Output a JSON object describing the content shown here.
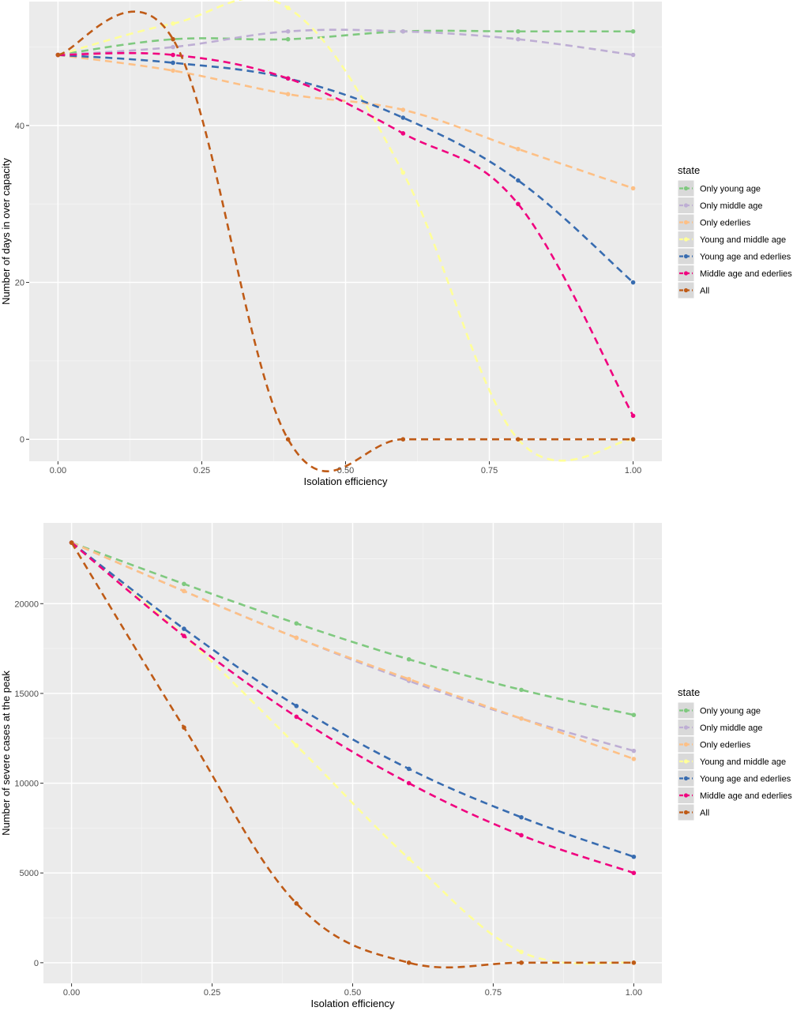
{
  "chart_data": [
    {
      "type": "line",
      "xlabel": "Isolation efficiency",
      "ylabel": "Number of days in over capacity",
      "xlim": [
        -0.05,
        1.05
      ],
      "ylim": [
        -2.8,
        55.8
      ],
      "x_ticks": [
        0.0,
        0.25,
        0.5,
        0.75,
        1.0
      ],
      "x_tick_labels": [
        "0.00",
        "0.25",
        "0.50",
        "0.75",
        "1.00"
      ],
      "y_ticks": [
        0,
        20,
        40
      ],
      "y_tick_labels": [
        "0",
        "20",
        "40"
      ],
      "grid": true,
      "line_style": "dashed",
      "legend": {
        "title": "state",
        "position": "right"
      },
      "x": [
        0.0,
        0.2,
        0.4,
        0.6,
        0.8,
        1.0
      ],
      "series": [
        {
          "name": "Only young age",
          "color": "#7fc97f",
          "values": [
            49,
            51,
            51,
            52,
            52,
            52
          ]
        },
        {
          "name": "Only middle age",
          "color": "#beaed4",
          "values": [
            49,
            50,
            52,
            52,
            51,
            49
          ]
        },
        {
          "name": "Only ederlies",
          "color": "#fdc086",
          "values": [
            49,
            47,
            44,
            42,
            37,
            32
          ]
        },
        {
          "name": "Young and middle age",
          "color": "#ffff99",
          "values": [
            49,
            53,
            55,
            34,
            0,
            0
          ]
        },
        {
          "name": "Young age and ederlies",
          "color": "#386cb0",
          "values": [
            49,
            48,
            46,
            41,
            33,
            20
          ]
        },
        {
          "name": "Middle age and ederlies",
          "color": "#f0027f",
          "values": [
            49,
            49,
            46,
            39,
            30,
            3
          ]
        },
        {
          "name": "All",
          "color": "#bf5b17",
          "values": [
            49,
            51,
            0,
            0,
            0,
            0
          ]
        }
      ]
    },
    {
      "type": "line",
      "xlabel": "Isolation efficiency",
      "ylabel": "Number of severe cases at the peak",
      "xlim": [
        -0.05,
        1.05
      ],
      "ylim": [
        -1150,
        24500
      ],
      "x_ticks": [
        0.0,
        0.25,
        0.5,
        0.75,
        1.0
      ],
      "x_tick_labels": [
        "0.00",
        "0.25",
        "0.50",
        "0.75",
        "1.00"
      ],
      "y_ticks": [
        0,
        5000,
        10000,
        15000,
        20000
      ],
      "y_tick_labels": [
        "0",
        "5000",
        "10000",
        "15000",
        "20000"
      ],
      "grid": true,
      "line_style": "dashed",
      "legend": {
        "title": "state",
        "position": "right"
      },
      "x": [
        0.0,
        0.2,
        0.4,
        0.6,
        0.8,
        1.0
      ],
      "series": [
        {
          "name": "Only young age",
          "color": "#7fc97f",
          "values": [
            23400,
            21100,
            18900,
            16900,
            15200,
            13800
          ]
        },
        {
          "name": "Only middle age",
          "color": "#beaed4",
          "values": [
            23400,
            20700,
            18100,
            15700,
            13600,
            11800
          ]
        },
        {
          "name": "Only ederlies",
          "color": "#fdc086",
          "values": [
            23400,
            20700,
            18100,
            15800,
            13600,
            11350
          ]
        },
        {
          "name": "Young and middle age",
          "color": "#ffff99",
          "values": [
            23400,
            18200,
            12100,
            5800,
            600,
            0
          ]
        },
        {
          "name": "Young age and ederlies",
          "color": "#386cb0",
          "values": [
            23400,
            18600,
            14300,
            10800,
            8100,
            5900
          ]
        },
        {
          "name": "Middle age and ederlies",
          "color": "#f0027f",
          "values": [
            23400,
            18200,
            13700,
            10000,
            7100,
            5000
          ]
        },
        {
          "name": "All",
          "color": "#bf5b17",
          "values": [
            23400,
            13100,
            3300,
            0,
            0,
            0
          ]
        }
      ]
    }
  ]
}
